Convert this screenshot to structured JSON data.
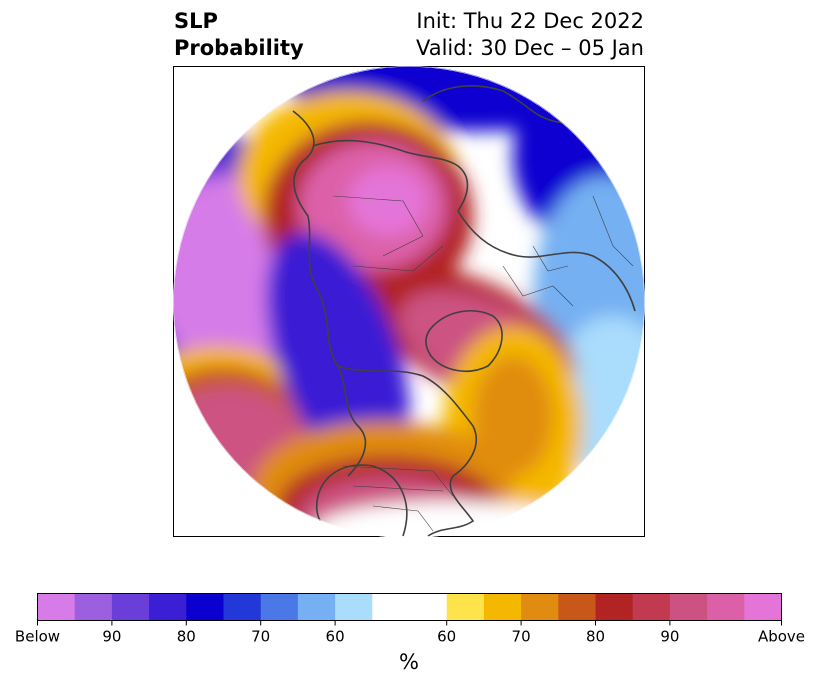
{
  "title": {
    "left_line1": "SLP",
    "left_line2": "Probability",
    "right_line1": "Init: Thu 22 Dec 2022",
    "right_line2": "Valid: 30 Dec – 05 Jan"
  },
  "colorbar": {
    "unit_label": "%",
    "ticks": [
      "Below",
      "90",
      "80",
      "70",
      "60",
      "60",
      "70",
      "80",
      "90",
      "Above"
    ],
    "colors": [
      "#d67be8",
      "#9b5fe0",
      "#6a3ed8",
      "#3a1fd4",
      "#0a00d0",
      "#2238d8",
      "#4a78e6",
      "#74b0f2",
      "#aadcfc",
      "#ffffff",
      "#ffe34a",
      "#f5b800",
      "#e08c10",
      "#c8581a",
      "#b22424",
      "#c23a50",
      "#cc5282",
      "#dc60a8",
      "#e474d8"
    ]
  },
  "map": {
    "projection": "north-polar-stereographic",
    "land_outline_color": "#404040"
  }
}
